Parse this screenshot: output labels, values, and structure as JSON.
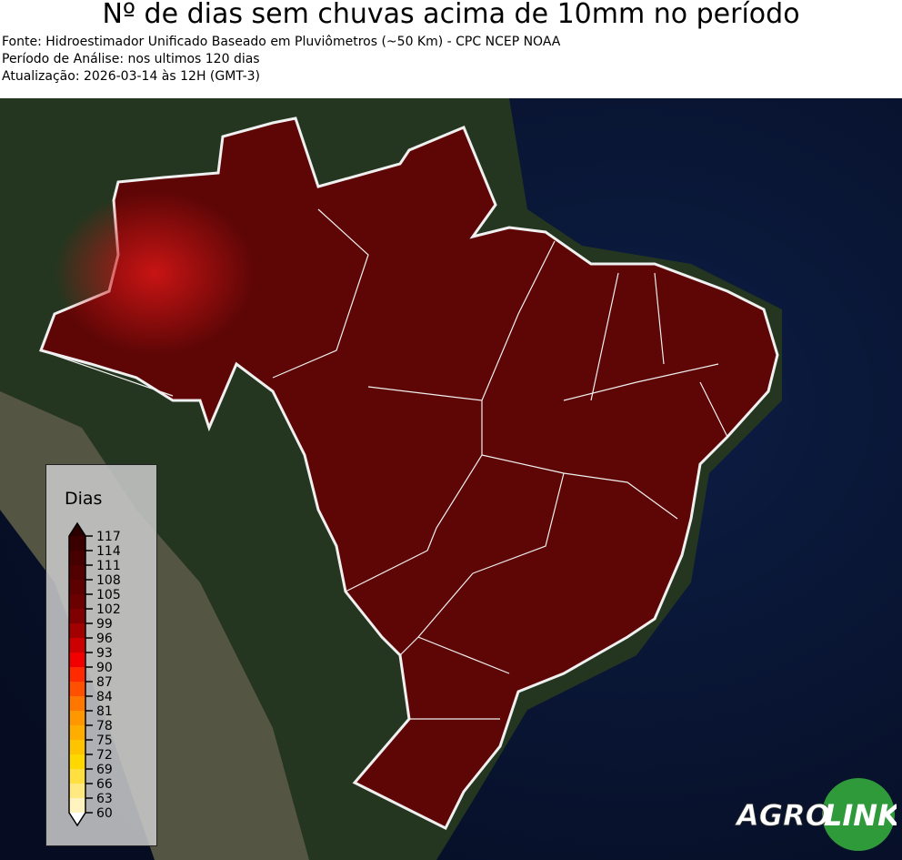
{
  "header": {
    "title": "Nº de dias sem chuvas acima de 10mm no período",
    "source": "Fonte: Hidroestimador Unificado Baseado em Pluviômetros (~50 Km) - CPC NCEP NOAA",
    "period": "Período de Análise: nos ultimos 120 dias",
    "updated": "Atualização: 2026-03-14 às 12H (GMT-3)"
  },
  "legend": {
    "title": "Dias",
    "ticks": [
      "117",
      "114",
      "111",
      "108",
      "105",
      "102",
      "99",
      "96",
      "93",
      "90",
      "87",
      "84",
      "81",
      "78",
      "75",
      "72",
      "69",
      "66",
      "63",
      "60"
    ],
    "colors": [
      "#3a0000",
      "#470000",
      "#520000",
      "#5d0000",
      "#6a0000",
      "#7e0000",
      "#a30000",
      "#cc0000",
      "#f20000",
      "#ff2a00",
      "#ff5000",
      "#ff7600",
      "#ff9800",
      "#ffae00",
      "#ffc400",
      "#ffd800",
      "#ffe040",
      "#ffe980",
      "#fff3c0"
    ],
    "extend_top_color": "#2a0000",
    "extend_bottom_color": "#ffffff"
  },
  "map": {
    "ocean_color": "#0b1a3a",
    "land_color": "#1f3320",
    "brazil_fill": "#5e0606",
    "hotspot_color": "#b81010",
    "border_color": "#f0f0f0"
  },
  "logo": {
    "text_left": "AGRO",
    "text_right": "LINK",
    "color": "#2e9a3a"
  }
}
